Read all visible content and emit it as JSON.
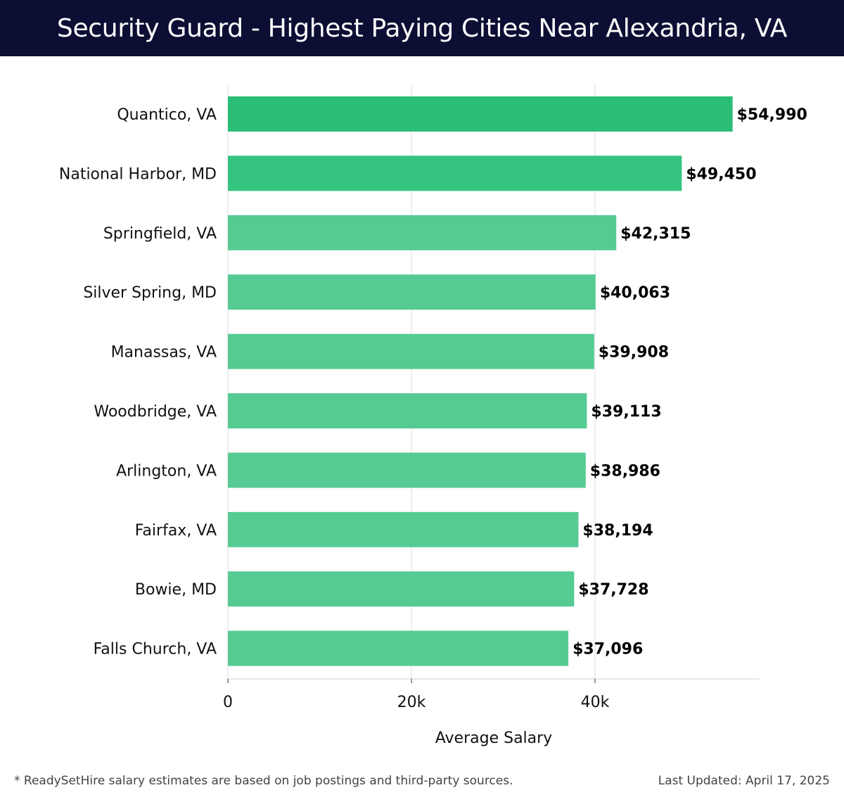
{
  "header": {
    "title": "Security Guard - Highest Paying Cities Near Alexandria, VA"
  },
  "footer": {
    "note": "* ReadySetHire salary estimates are based on job postings and third-party sources.",
    "updated": "Last Updated: April 17, 2025"
  },
  "colors": {
    "header_bg": "#0c0f33",
    "bar_top": "#2bbd76",
    "bar_mid": "#34c47f",
    "bar": "#55cb93",
    "grid": "#dddddd"
  },
  "chart_data": {
    "type": "bar",
    "orientation": "horizontal",
    "categories": [
      "Quantico, VA",
      "National Harbor, MD",
      "Springfield, VA",
      "Silver Spring, MD",
      "Manassas, VA",
      "Woodbridge, VA",
      "Arlington, VA",
      "Fairfax, VA",
      "Bowie, MD",
      "Falls Church, VA"
    ],
    "values": [
      54990,
      49450,
      42315,
      40063,
      39908,
      39113,
      38986,
      38194,
      37728,
      37096
    ],
    "value_labels": [
      "$54,990",
      "$49,450",
      "$42,315",
      "$40,063",
      "$39,908",
      "$39,113",
      "$38,986",
      "$38,194",
      "$37,728",
      "$37,096"
    ],
    "xlabel": "Average Salary",
    "xlim": [
      0,
      57900
    ],
    "xticks": [
      0,
      20000,
      40000
    ],
    "xtick_labels": [
      "0",
      "20k",
      "40k"
    ],
    "grid": true
  }
}
